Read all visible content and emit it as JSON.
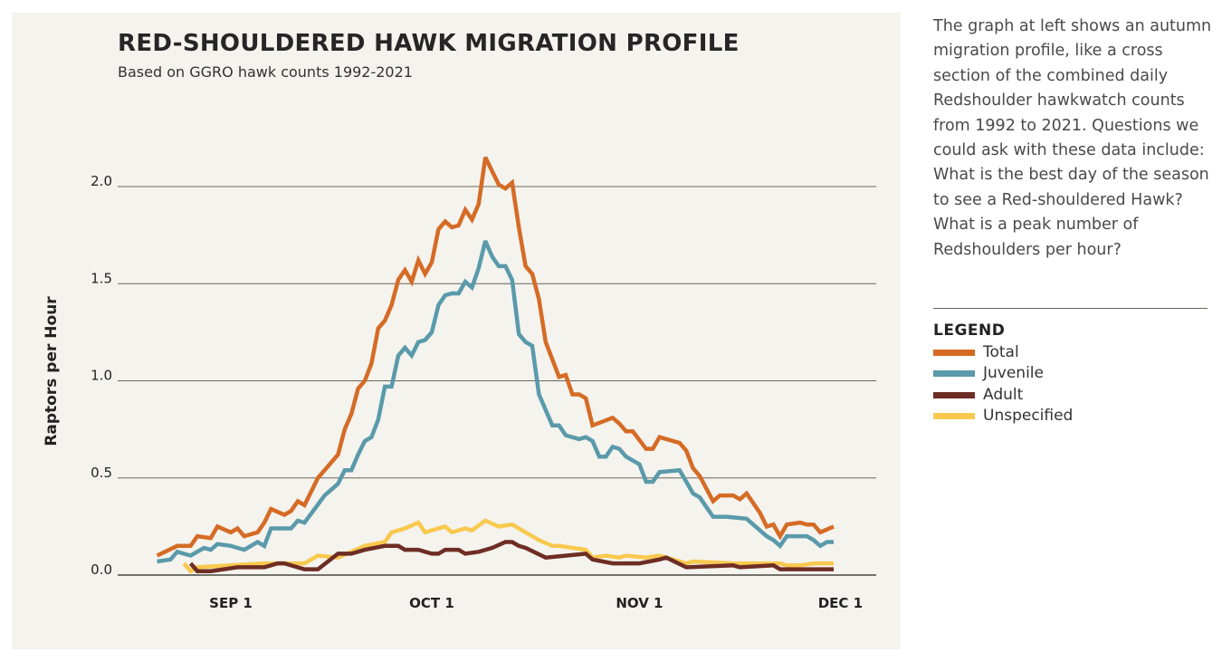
{
  "side_text": "The graph at left shows an autumn migration profile, like a cross section of the combined daily Redshoulder hawkwatch counts from 1992 to 2021. Questions we could ask with these data include: What is the best day of the season to see a Red-shouldered Hawk? What is a peak number of Redshoulders per hour?",
  "legend": {
    "title": "LEGEND",
    "items": [
      {
        "label": "Total",
        "color": "#d56b25"
      },
      {
        "label": "Juvenile",
        "color": "#5a9aaa"
      },
      {
        "label": "Adult",
        "color": "#6e2d24"
      },
      {
        "label": "Unspecified",
        "color": "#f8c94e"
      }
    ]
  },
  "chart_data": {
    "type": "line",
    "title": "RED-SHOULDERED HAWK MIGRATION PROFILE",
    "subtitle": "Based on GGRO hawk counts 1992-2021",
    "xlabel": "",
    "ylabel": "Raptors per Hour",
    "ylim": [
      0,
      2.0
    ],
    "yticks": [
      "0.0",
      "0.5",
      "1.0",
      "1.5",
      "2.0"
    ],
    "xticks": [
      {
        "label": "SEP 1",
        "date": "09-01"
      },
      {
        "label": "OCT 1",
        "date": "10-01"
      },
      {
        "label": "NOV 1",
        "date": "11-01"
      },
      {
        "label": "DEC 1",
        "date": "12-01"
      }
    ],
    "grid": "horizontal",
    "legend": "right, outside",
    "series": [
      {
        "name": "Unspecified",
        "color": "#f8c94e",
        "points": [
          [
            "08-25",
            0.06
          ],
          [
            "08-26",
            0.02
          ],
          [
            "08-27",
            0.04
          ],
          [
            "09-06",
            0.06
          ],
          [
            "09-12",
            0.06
          ],
          [
            "09-14",
            0.1
          ],
          [
            "09-17",
            0.09
          ],
          [
            "09-21",
            0.15
          ],
          [
            "09-24",
            0.17
          ],
          [
            "09-25",
            0.22
          ],
          [
            "09-27",
            0.24
          ],
          [
            "09-29",
            0.27
          ],
          [
            "09-30",
            0.22
          ],
          [
            "10-03",
            0.25
          ],
          [
            "10-04",
            0.22
          ],
          [
            "10-06",
            0.24
          ],
          [
            "10-07",
            0.23
          ],
          [
            "10-09",
            0.28
          ],
          [
            "10-11",
            0.25
          ],
          [
            "10-13",
            0.26
          ],
          [
            "10-15",
            0.22
          ],
          [
            "10-17",
            0.18
          ],
          [
            "10-19",
            0.15
          ],
          [
            "10-20",
            0.15
          ],
          [
            "10-24",
            0.13
          ],
          [
            "10-25",
            0.09
          ],
          [
            "10-27",
            0.1
          ],
          [
            "10-29",
            0.09
          ],
          [
            "10-30",
            0.1
          ],
          [
            "11-02",
            0.09
          ],
          [
            "11-04",
            0.1
          ],
          [
            "11-05",
            0.09
          ],
          [
            "11-08",
            0.06
          ],
          [
            "11-09",
            0.07
          ],
          [
            "11-15",
            0.06
          ],
          [
            "11-22",
            0.06
          ],
          [
            "11-23",
            0.05
          ],
          [
            "11-25",
            0.05
          ],
          [
            "11-27",
            0.06
          ],
          [
            "11-30",
            0.06
          ]
        ]
      },
      {
        "name": "Adult",
        "color": "#6e2d24",
        "points": [
          [
            "08-26",
            0.06
          ],
          [
            "08-27",
            0.02
          ],
          [
            "08-29",
            0.02
          ],
          [
            "09-02",
            0.04
          ],
          [
            "09-06",
            0.04
          ],
          [
            "09-08",
            0.06
          ],
          [
            "09-09",
            0.06
          ],
          [
            "09-12",
            0.03
          ],
          [
            "09-14",
            0.03
          ],
          [
            "09-17",
            0.11
          ],
          [
            "09-19",
            0.11
          ],
          [
            "09-21",
            0.13
          ],
          [
            "09-24",
            0.15
          ],
          [
            "09-26",
            0.15
          ],
          [
            "09-27",
            0.13
          ],
          [
            "09-29",
            0.13
          ],
          [
            "10-01",
            0.11
          ],
          [
            "10-02",
            0.11
          ],
          [
            "10-03",
            0.13
          ],
          [
            "10-05",
            0.13
          ],
          [
            "10-06",
            0.11
          ],
          [
            "10-08",
            0.12
          ],
          [
            "10-10",
            0.14
          ],
          [
            "10-12",
            0.17
          ],
          [
            "10-13",
            0.17
          ],
          [
            "10-14",
            0.15
          ],
          [
            "10-15",
            0.14
          ],
          [
            "10-18",
            0.09
          ],
          [
            "10-24",
            0.11
          ],
          [
            "10-25",
            0.08
          ],
          [
            "10-28",
            0.06
          ],
          [
            "11-01",
            0.06
          ],
          [
            "11-04",
            0.08
          ],
          [
            "11-05",
            0.09
          ],
          [
            "11-08",
            0.04
          ],
          [
            "11-15",
            0.05
          ],
          [
            "11-16",
            0.04
          ],
          [
            "11-21",
            0.05
          ],
          [
            "11-22",
            0.03
          ],
          [
            "11-30",
            0.03
          ]
        ]
      },
      {
        "name": "Juvenile",
        "color": "#5a9aaa",
        "points": [
          [
            "08-21",
            0.07
          ],
          [
            "08-23",
            0.08
          ],
          [
            "08-24",
            0.12
          ],
          [
            "08-26",
            0.1
          ],
          [
            "08-28",
            0.14
          ],
          [
            "08-29",
            0.13
          ],
          [
            "08-30",
            0.16
          ],
          [
            "09-01",
            0.15
          ],
          [
            "09-02",
            0.14
          ],
          [
            "09-03",
            0.13
          ],
          [
            "09-05",
            0.17
          ],
          [
            "09-06",
            0.15
          ],
          [
            "09-07",
            0.24
          ],
          [
            "09-10",
            0.24
          ],
          [
            "09-11",
            0.28
          ],
          [
            "09-12",
            0.27
          ],
          [
            "09-15",
            0.41
          ],
          [
            "09-17",
            0.47
          ],
          [
            "09-18",
            0.54
          ],
          [
            "09-19",
            0.54
          ],
          [
            "09-20",
            0.62
          ],
          [
            "09-21",
            0.69
          ],
          [
            "09-22",
            0.71
          ],
          [
            "09-23",
            0.8
          ],
          [
            "09-24",
            0.97
          ],
          [
            "09-25",
            0.97
          ],
          [
            "09-26",
            1.13
          ],
          [
            "09-27",
            1.17
          ],
          [
            "09-28",
            1.13
          ],
          [
            "09-29",
            1.2
          ],
          [
            "09-30",
            1.21
          ],
          [
            "10-01",
            1.25
          ],
          [
            "10-02",
            1.39
          ],
          [
            "10-03",
            1.44
          ],
          [
            "10-04",
            1.45
          ],
          [
            "10-05",
            1.45
          ],
          [
            "10-06",
            1.51
          ],
          [
            "10-07",
            1.48
          ],
          [
            "10-08",
            1.58
          ],
          [
            "10-09",
            1.72
          ],
          [
            "10-10",
            1.64
          ],
          [
            "10-11",
            1.59
          ],
          [
            "10-12",
            1.59
          ],
          [
            "10-13",
            1.52
          ],
          [
            "10-14",
            1.24
          ],
          [
            "10-15",
            1.2
          ],
          [
            "10-16",
            1.18
          ],
          [
            "10-17",
            0.93
          ],
          [
            "10-18",
            0.85
          ],
          [
            "10-19",
            0.77
          ],
          [
            "10-20",
            0.77
          ],
          [
            "10-21",
            0.72
          ],
          [
            "10-23",
            0.7
          ],
          [
            "10-24",
            0.71
          ],
          [
            "10-25",
            0.69
          ],
          [
            "10-26",
            0.61
          ],
          [
            "10-27",
            0.61
          ],
          [
            "10-28",
            0.66
          ],
          [
            "10-29",
            0.65
          ],
          [
            "10-30",
            0.61
          ],
          [
            "11-01",
            0.57
          ],
          [
            "11-02",
            0.48
          ],
          [
            "11-03",
            0.48
          ],
          [
            "11-04",
            0.53
          ],
          [
            "11-07",
            0.54
          ],
          [
            "11-08",
            0.48
          ],
          [
            "11-09",
            0.42
          ],
          [
            "11-10",
            0.4
          ],
          [
            "11-12",
            0.3
          ],
          [
            "11-14",
            0.3
          ],
          [
            "11-17",
            0.29
          ],
          [
            "11-20",
            0.2
          ],
          [
            "11-21",
            0.18
          ],
          [
            "11-22",
            0.15
          ],
          [
            "11-23",
            0.2
          ],
          [
            "11-26",
            0.2
          ],
          [
            "11-27",
            0.18
          ],
          [
            "11-28",
            0.15
          ],
          [
            "11-29",
            0.17
          ],
          [
            "11-30",
            0.17
          ]
        ]
      },
      {
        "name": "Total",
        "color": "#d56b25",
        "points": [
          [
            "08-21",
            0.1
          ],
          [
            "08-24",
            0.15
          ],
          [
            "08-26",
            0.15
          ],
          [
            "08-27",
            0.2
          ],
          [
            "08-29",
            0.19
          ],
          [
            "08-30",
            0.25
          ],
          [
            "09-01",
            0.22
          ],
          [
            "09-02",
            0.24
          ],
          [
            "09-03",
            0.2
          ],
          [
            "09-05",
            0.22
          ],
          [
            "09-06",
            0.27
          ],
          [
            "09-07",
            0.34
          ],
          [
            "09-09",
            0.31
          ],
          [
            "09-10",
            0.33
          ],
          [
            "09-11",
            0.38
          ],
          [
            "09-12",
            0.36
          ],
          [
            "09-14",
            0.5
          ],
          [
            "09-16",
            0.58
          ],
          [
            "09-17",
            0.62
          ],
          [
            "09-18",
            0.75
          ],
          [
            "09-19",
            0.83
          ],
          [
            "09-20",
            0.96
          ],
          [
            "09-21",
            1.0
          ],
          [
            "09-22",
            1.09
          ],
          [
            "09-23",
            1.27
          ],
          [
            "09-24",
            1.31
          ],
          [
            "09-25",
            1.39
          ],
          [
            "09-26",
            1.52
          ],
          [
            "09-27",
            1.57
          ],
          [
            "09-28",
            1.51
          ],
          [
            "09-29",
            1.62
          ],
          [
            "09-30",
            1.55
          ],
          [
            "10-01",
            1.61
          ],
          [
            "10-02",
            1.78
          ],
          [
            "10-03",
            1.82
          ],
          [
            "10-04",
            1.79
          ],
          [
            "10-05",
            1.8
          ],
          [
            "10-06",
            1.88
          ],
          [
            "10-07",
            1.83
          ],
          [
            "10-08",
            1.91
          ],
          [
            "10-09",
            2.15
          ],
          [
            "10-11",
            2.01
          ],
          [
            "10-12",
            1.99
          ],
          [
            "10-13",
            2.02
          ],
          [
            "10-14",
            1.79
          ],
          [
            "10-15",
            1.59
          ],
          [
            "10-16",
            1.55
          ],
          [
            "10-17",
            1.42
          ],
          [
            "10-18",
            1.2
          ],
          [
            "10-20",
            1.02
          ],
          [
            "10-21",
            1.03
          ],
          [
            "10-22",
            0.93
          ],
          [
            "10-23",
            0.93
          ],
          [
            "10-24",
            0.91
          ],
          [
            "10-25",
            0.77
          ],
          [
            "10-28",
            0.81
          ],
          [
            "10-29",
            0.78
          ],
          [
            "10-30",
            0.74
          ],
          [
            "10-31",
            0.74
          ],
          [
            "11-02",
            0.65
          ],
          [
            "11-03",
            0.65
          ],
          [
            "11-04",
            0.71
          ],
          [
            "11-07",
            0.68
          ],
          [
            "11-08",
            0.64
          ],
          [
            "11-09",
            0.55
          ],
          [
            "11-10",
            0.51
          ],
          [
            "11-12",
            0.38
          ],
          [
            "11-13",
            0.41
          ],
          [
            "11-15",
            0.41
          ],
          [
            "11-16",
            0.39
          ],
          [
            "11-17",
            0.42
          ],
          [
            "11-19",
            0.32
          ],
          [
            "11-20",
            0.25
          ],
          [
            "11-21",
            0.26
          ],
          [
            "11-22",
            0.2
          ],
          [
            "11-23",
            0.26
          ],
          [
            "11-25",
            0.27
          ],
          [
            "11-26",
            0.26
          ],
          [
            "11-27",
            0.26
          ],
          [
            "11-28",
            0.22
          ],
          [
            "11-30",
            0.25
          ]
        ]
      }
    ]
  }
}
